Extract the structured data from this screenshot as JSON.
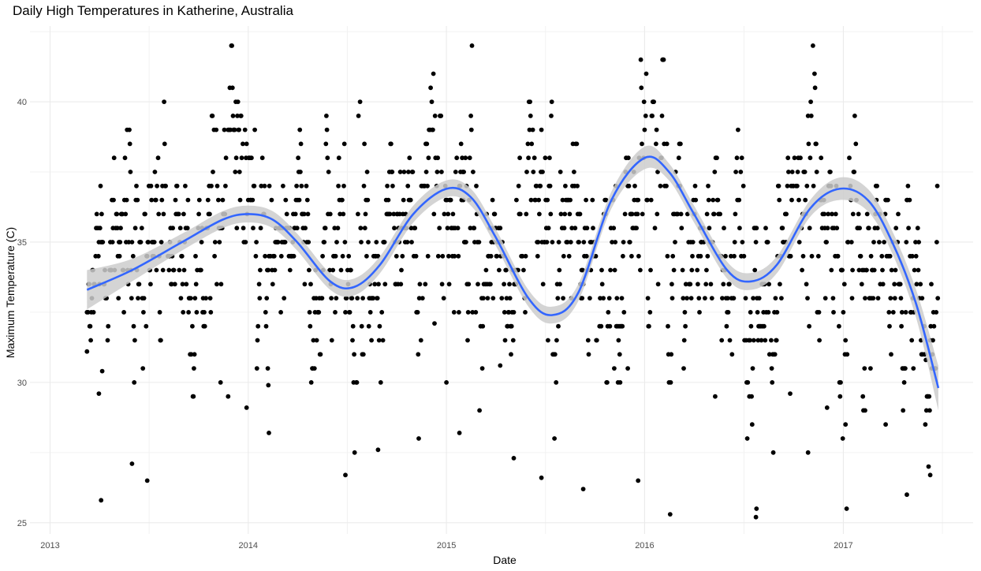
{
  "chart_data": {
    "type": "scatter",
    "title": "Daily High Temperatures in Katherine, Australia",
    "xlabel": "Date",
    "ylabel": "Maximum Temperature (C)",
    "x_axis_type": "date",
    "xlim": [
      "2012-11-25",
      "2017-08-28"
    ],
    "ylim": [
      24.6,
      42.7
    ],
    "x_ticks": [
      {
        "value": "2013-01-01",
        "label": "2013"
      },
      {
        "value": "2014-01-01",
        "label": "2014"
      },
      {
        "value": "2015-01-01",
        "label": "2015"
      },
      {
        "value": "2016-01-01",
        "label": "2016"
      },
      {
        "value": "2017-01-01",
        "label": "2017"
      }
    ],
    "y_ticks": [
      25,
      30,
      35,
      40
    ],
    "grid": true,
    "point_color": "#000000",
    "smooth_color": "#3366ff",
    "ribbon_color": "#cccccc",
    "series": [
      {
        "kind": "points",
        "sparse_points": [
          {
            "x": "2013-03-10",
            "y": 31.1
          },
          {
            "x": "2013-04-05",
            "y": 25.8
          },
          {
            "x": "2013-04-01",
            "y": 29.6
          },
          {
            "x": "2013-04-07",
            "y": 30.4
          },
          {
            "x": "2013-06-01",
            "y": 27.1
          },
          {
            "x": "2013-06-29",
            "y": 26.5
          },
          {
            "x": "2013-11-25",
            "y": 29.5
          },
          {
            "x": "2013-12-29",
            "y": 29.1
          },
          {
            "x": "2014-02-08",
            "y": 28.2
          },
          {
            "x": "2014-02-07",
            "y": 29.9
          },
          {
            "x": "2014-06-29",
            "y": 26.7
          },
          {
            "x": "2014-07-16",
            "y": 27.5
          },
          {
            "x": "2014-08-28",
            "y": 27.6
          },
          {
            "x": "2014-12-10",
            "y": 32.1
          },
          {
            "x": "2015-01-25",
            "y": 28.2
          },
          {
            "x": "2015-04-10",
            "y": 30.6
          },
          {
            "x": "2015-05-05",
            "y": 27.3
          },
          {
            "x": "2015-06-25",
            "y": 26.6
          },
          {
            "x": "2015-09-10",
            "y": 26.2
          },
          {
            "x": "2015-12-01",
            "y": 30.5
          },
          {
            "x": "2015-12-20",
            "y": 26.5
          },
          {
            "x": "2016-05-10",
            "y": 29.5
          },
          {
            "x": "2016-07-25",
            "y": 25.5
          },
          {
            "x": "2016-07-24",
            "y": 25.2
          },
          {
            "x": "2016-08-25",
            "y": 27.5
          },
          {
            "x": "2016-09-25",
            "y": 29.6
          },
          {
            "x": "2016-10-28",
            "y": 27.5
          },
          {
            "x": "2016-12-02",
            "y": 29.1
          },
          {
            "x": "2017-01-05",
            "y": 28.5
          },
          {
            "x": "2017-02-10",
            "y": 29.0
          },
          {
            "x": "2017-03-20",
            "y": 28.5
          },
          {
            "x": "2017-04-28",
            "y": 26.0
          },
          {
            "x": "2017-06-02",
            "y": 30.8
          },
          {
            "x": "2017-06-10",
            "y": 26.7
          }
        ]
      },
      {
        "kind": "smooth",
        "points": [
          {
            "x": "2013-03-10",
            "y": 33.3,
            "lo": 32.6,
            "hi": 34.0
          },
          {
            "x": "2013-06-01",
            "y": 34.0,
            "lo": 33.6,
            "hi": 34.4
          },
          {
            "x": "2013-09-01",
            "y": 35.0,
            "lo": 34.7,
            "hi": 35.3
          },
          {
            "x": "2013-11-15",
            "y": 35.8,
            "lo": 35.5,
            "hi": 36.1
          },
          {
            "x": "2014-01-01",
            "y": 36.0,
            "lo": 35.7,
            "hi": 36.3
          },
          {
            "x": "2014-02-15",
            "y": 35.8,
            "lo": 35.5,
            "hi": 36.1
          },
          {
            "x": "2014-04-01",
            "y": 35.0,
            "lo": 34.7,
            "hi": 35.3
          },
          {
            "x": "2014-06-01",
            "y": 33.6,
            "lo": 33.3,
            "hi": 33.9
          },
          {
            "x": "2014-07-15",
            "y": 33.4,
            "lo": 33.1,
            "hi": 33.7
          },
          {
            "x": "2014-09-01",
            "y": 34.2,
            "lo": 33.9,
            "hi": 34.5
          },
          {
            "x": "2014-11-01",
            "y": 36.0,
            "lo": 35.7,
            "hi": 36.3
          },
          {
            "x": "2015-01-01",
            "y": 36.9,
            "lo": 36.6,
            "hi": 37.2
          },
          {
            "x": "2015-02-15",
            "y": 36.6,
            "lo": 36.3,
            "hi": 36.9
          },
          {
            "x": "2015-04-01",
            "y": 35.2,
            "lo": 34.9,
            "hi": 35.5
          },
          {
            "x": "2015-06-01",
            "y": 33.0,
            "lo": 32.7,
            "hi": 33.3
          },
          {
            "x": "2015-07-15",
            "y": 32.4,
            "lo": 32.1,
            "hi": 32.7
          },
          {
            "x": "2015-09-01",
            "y": 33.2,
            "lo": 32.9,
            "hi": 33.5
          },
          {
            "x": "2015-11-01",
            "y": 36.5,
            "lo": 36.2,
            "hi": 36.8
          },
          {
            "x": "2016-01-01",
            "y": 38.0,
            "lo": 37.6,
            "hi": 38.4
          },
          {
            "x": "2016-02-15",
            "y": 37.5,
            "lo": 37.2,
            "hi": 37.8
          },
          {
            "x": "2016-04-01",
            "y": 36.0,
            "lo": 35.7,
            "hi": 36.3
          },
          {
            "x": "2016-06-01",
            "y": 34.0,
            "lo": 33.7,
            "hi": 34.3
          },
          {
            "x": "2016-07-15",
            "y": 33.6,
            "lo": 33.3,
            "hi": 33.9
          },
          {
            "x": "2016-09-01",
            "y": 34.2,
            "lo": 33.9,
            "hi": 34.5
          },
          {
            "x": "2016-11-01",
            "y": 36.2,
            "lo": 35.9,
            "hi": 36.5
          },
          {
            "x": "2016-12-25",
            "y": 36.9,
            "lo": 36.5,
            "hi": 37.3
          },
          {
            "x": "2017-02-15",
            "y": 36.5,
            "lo": 36.1,
            "hi": 36.9
          },
          {
            "x": "2017-04-01",
            "y": 35.0,
            "lo": 34.6,
            "hi": 35.4
          },
          {
            "x": "2017-05-15",
            "y": 32.8,
            "lo": 32.3,
            "hi": 33.3
          },
          {
            "x": "2017-06-25",
            "y": 29.8,
            "lo": 29.0,
            "hi": 30.6
          }
        ]
      }
    ]
  }
}
